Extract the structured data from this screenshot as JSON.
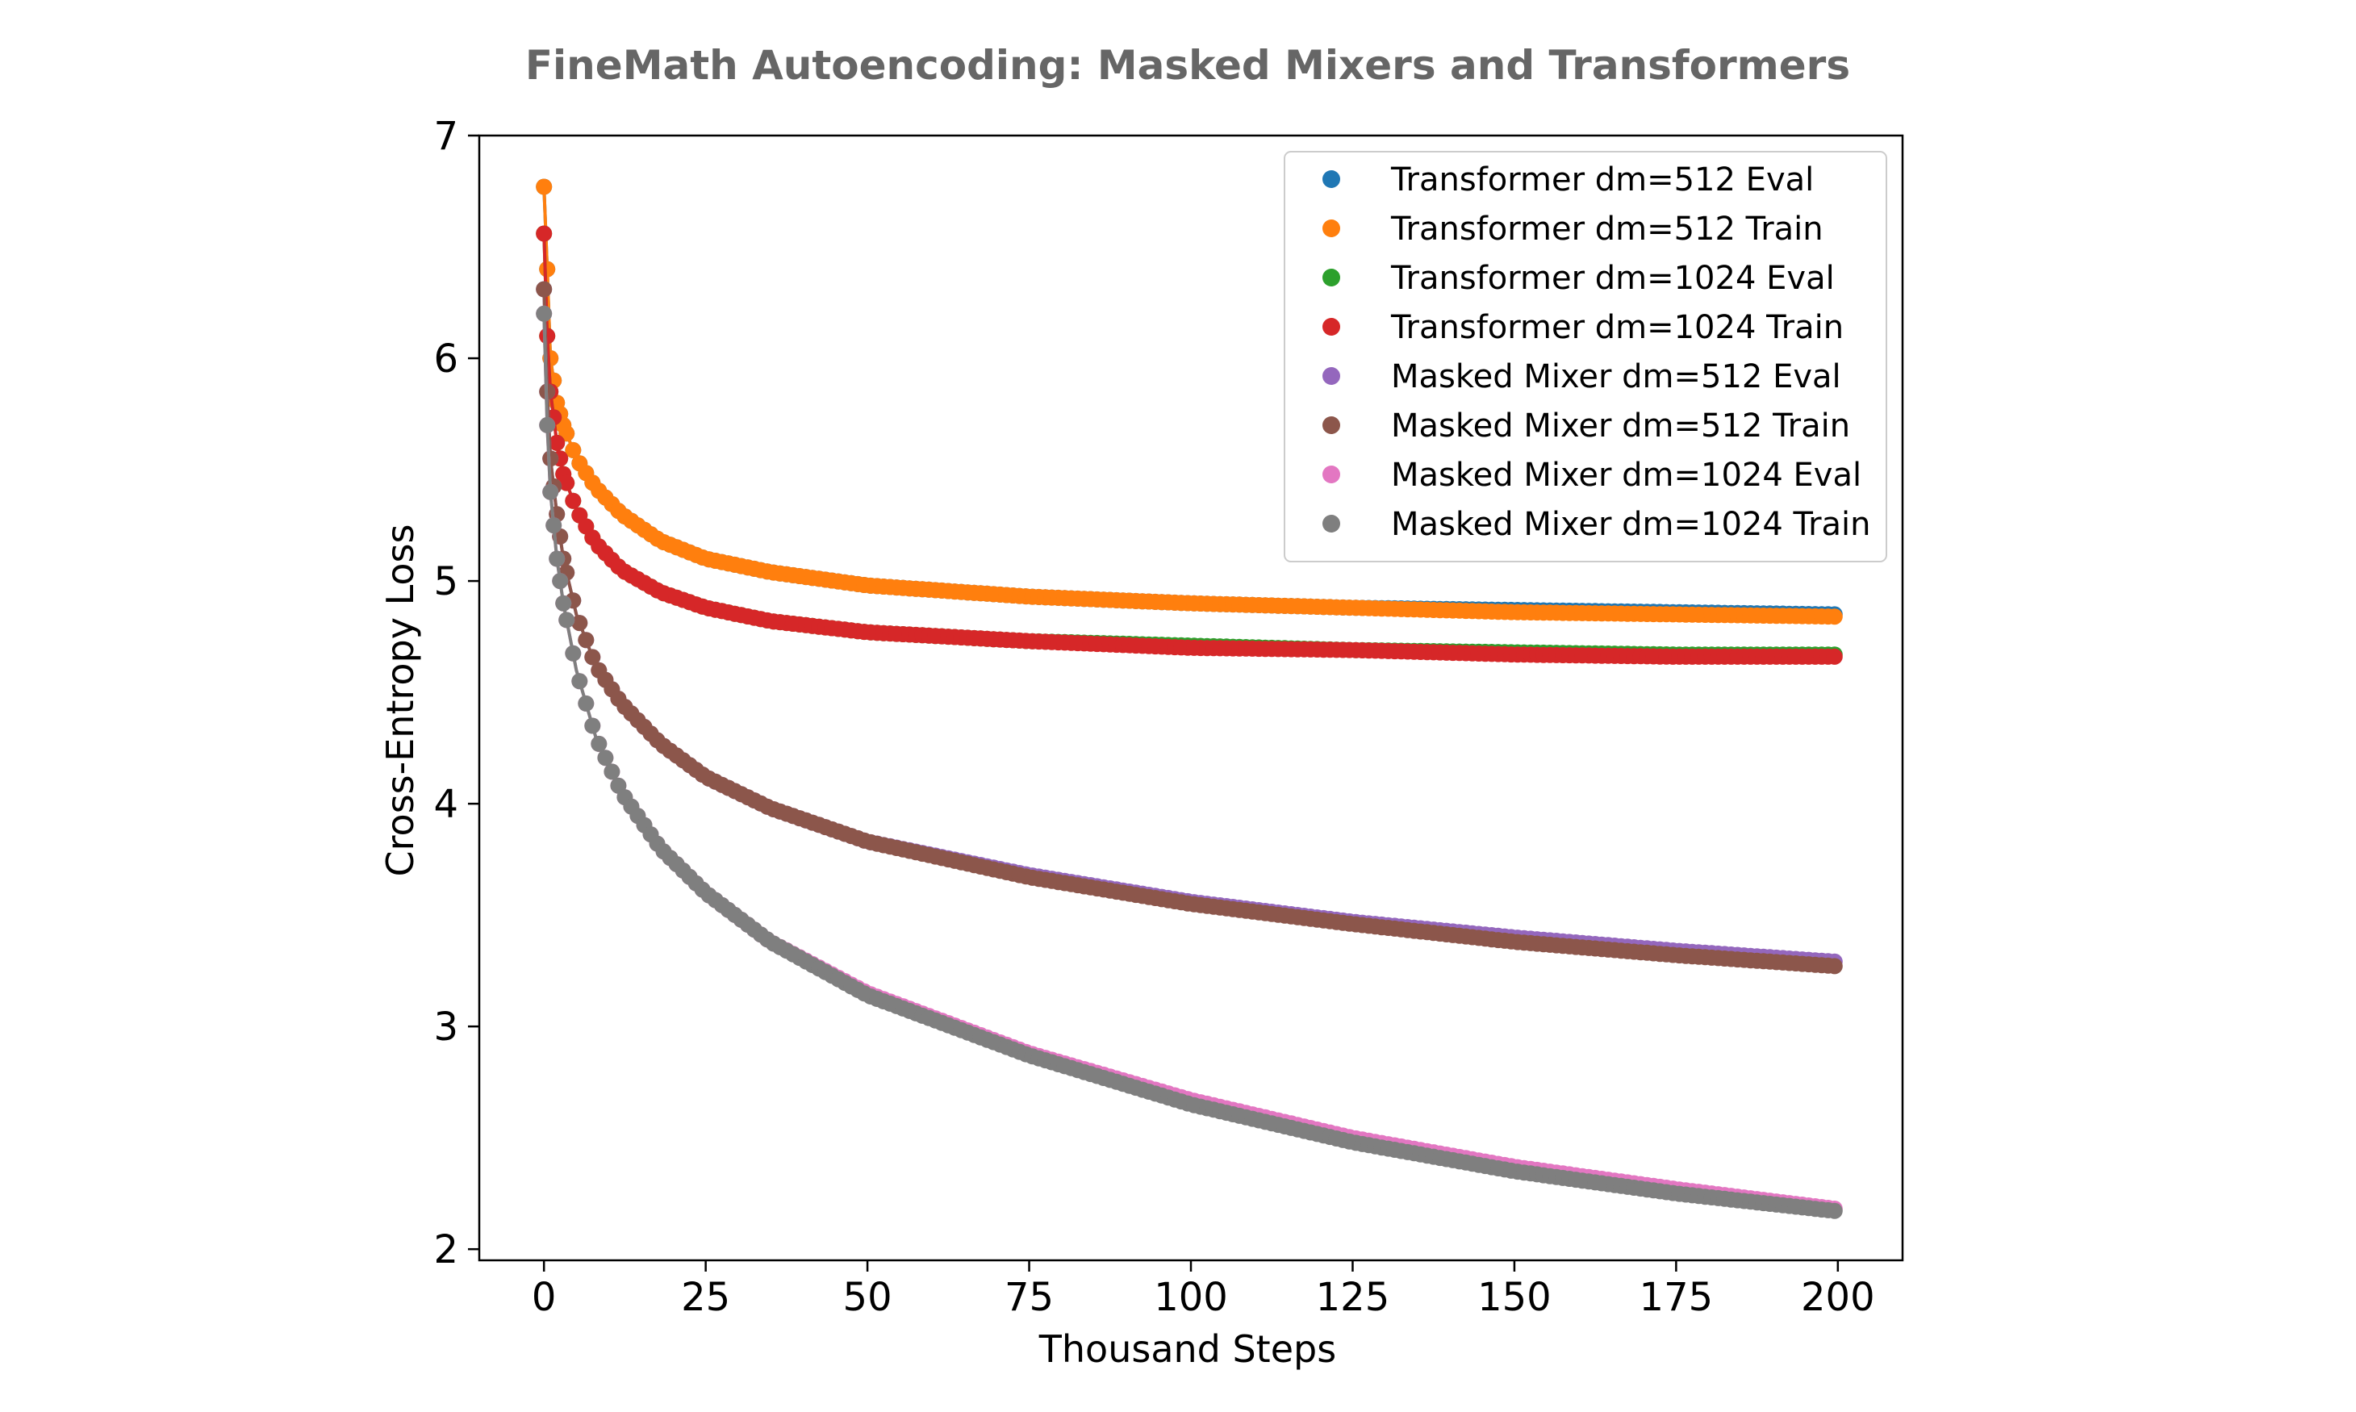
{
  "chart_data": {
    "type": "line",
    "title": "FineMath Autoencoding: Masked Mixers and Transformers",
    "xlabel": "Thousand Steps",
    "ylabel": "Cross-Entropy Loss",
    "xlim": [
      -10,
      210
    ],
    "ylim": [
      1.95,
      7.0
    ],
    "xticks": [
      0,
      25,
      50,
      75,
      100,
      125,
      150,
      175,
      200
    ],
    "yticks": [
      2,
      3,
      4,
      5,
      6,
      7
    ],
    "grid": false,
    "legend_position": "top-right",
    "colors": {
      "title": "#666666",
      "axis": "#000000"
    },
    "series": [
      {
        "name": "Transformer dm=512 Eval",
        "color": "#1f77b4",
        "x": [
          0,
          0.5,
          1,
          2,
          3,
          5,
          8,
          12,
          18,
          25,
          35,
          50,
          75,
          100,
          125,
          150,
          175,
          200
        ],
        "y": [
          6.77,
          6.4,
          6.0,
          5.8,
          5.7,
          5.55,
          5.42,
          5.3,
          5.18,
          5.1,
          5.04,
          4.98,
          4.93,
          4.9,
          4.88,
          4.87,
          4.86,
          4.85
        ]
      },
      {
        "name": "Transformer dm=512 Train",
        "color": "#ff7f0e",
        "x": [
          0,
          0.5,
          1,
          2,
          3,
          5,
          8,
          12,
          18,
          25,
          35,
          50,
          75,
          100,
          125,
          150,
          175,
          200
        ],
        "y": [
          6.77,
          6.4,
          6.0,
          5.8,
          5.7,
          5.55,
          5.42,
          5.3,
          5.18,
          5.1,
          5.04,
          4.98,
          4.93,
          4.9,
          4.88,
          4.86,
          4.85,
          4.84
        ]
      },
      {
        "name": "Transformer dm=1024 Eval",
        "color": "#2ca02c",
        "x": [
          0,
          0.5,
          1,
          2,
          3,
          5,
          8,
          12,
          18,
          25,
          35,
          50,
          75,
          100,
          125,
          150,
          175,
          200
        ],
        "y": [
          6.56,
          6.1,
          5.85,
          5.62,
          5.48,
          5.32,
          5.17,
          5.05,
          4.95,
          4.88,
          4.82,
          4.77,
          4.73,
          4.71,
          4.69,
          4.68,
          4.67,
          4.67
        ]
      },
      {
        "name": "Transformer dm=1024 Train",
        "color": "#d62728",
        "x": [
          0,
          0.5,
          1,
          2,
          3,
          5,
          8,
          12,
          18,
          25,
          35,
          50,
          75,
          100,
          125,
          150,
          175,
          200
        ],
        "y": [
          6.56,
          6.1,
          5.85,
          5.62,
          5.48,
          5.32,
          5.17,
          5.05,
          4.95,
          4.88,
          4.82,
          4.77,
          4.73,
          4.7,
          4.69,
          4.67,
          4.66,
          4.66
        ]
      },
      {
        "name": "Masked Mixer dm=512 Eval",
        "color": "#9467bd",
        "x": [
          0,
          0.5,
          1,
          2,
          3,
          5,
          8,
          12,
          18,
          25,
          35,
          50,
          75,
          100,
          125,
          150,
          175,
          200
        ],
        "y": [
          6.31,
          5.85,
          5.55,
          5.3,
          5.1,
          4.85,
          4.62,
          4.45,
          4.27,
          4.12,
          3.98,
          3.83,
          3.68,
          3.56,
          3.47,
          3.4,
          3.34,
          3.29
        ]
      },
      {
        "name": "Masked Mixer dm=512 Train",
        "color": "#8c564b",
        "x": [
          0,
          0.5,
          1,
          2,
          3,
          5,
          8,
          12,
          18,
          25,
          35,
          50,
          75,
          100,
          125,
          150,
          175,
          200
        ],
        "y": [
          6.31,
          5.85,
          5.55,
          5.3,
          5.1,
          4.85,
          4.62,
          4.45,
          4.27,
          4.12,
          3.98,
          3.83,
          3.67,
          3.55,
          3.46,
          3.38,
          3.32,
          3.27
        ]
      },
      {
        "name": "Masked Mixer dm=1024 Eval",
        "color": "#e377c2",
        "x": [
          0,
          0.5,
          1,
          2,
          3,
          5,
          8,
          12,
          18,
          25,
          35,
          50,
          75,
          100,
          125,
          150,
          175,
          200
        ],
        "y": [
          6.2,
          5.7,
          5.4,
          5.1,
          4.9,
          4.6,
          4.3,
          4.05,
          3.8,
          3.6,
          3.38,
          3.15,
          2.88,
          2.67,
          2.5,
          2.37,
          2.27,
          2.18
        ]
      },
      {
        "name": "Masked Mixer dm=1024 Train",
        "color": "#7f7f7f",
        "x": [
          0,
          0.5,
          1,
          2,
          3,
          5,
          8,
          12,
          18,
          25,
          35,
          50,
          75,
          100,
          125,
          150,
          175,
          200
        ],
        "y": [
          6.2,
          5.7,
          5.4,
          5.1,
          4.9,
          4.6,
          4.3,
          4.05,
          3.8,
          3.6,
          3.38,
          3.14,
          2.87,
          2.65,
          2.48,
          2.35,
          2.25,
          2.17
        ]
      }
    ]
  }
}
